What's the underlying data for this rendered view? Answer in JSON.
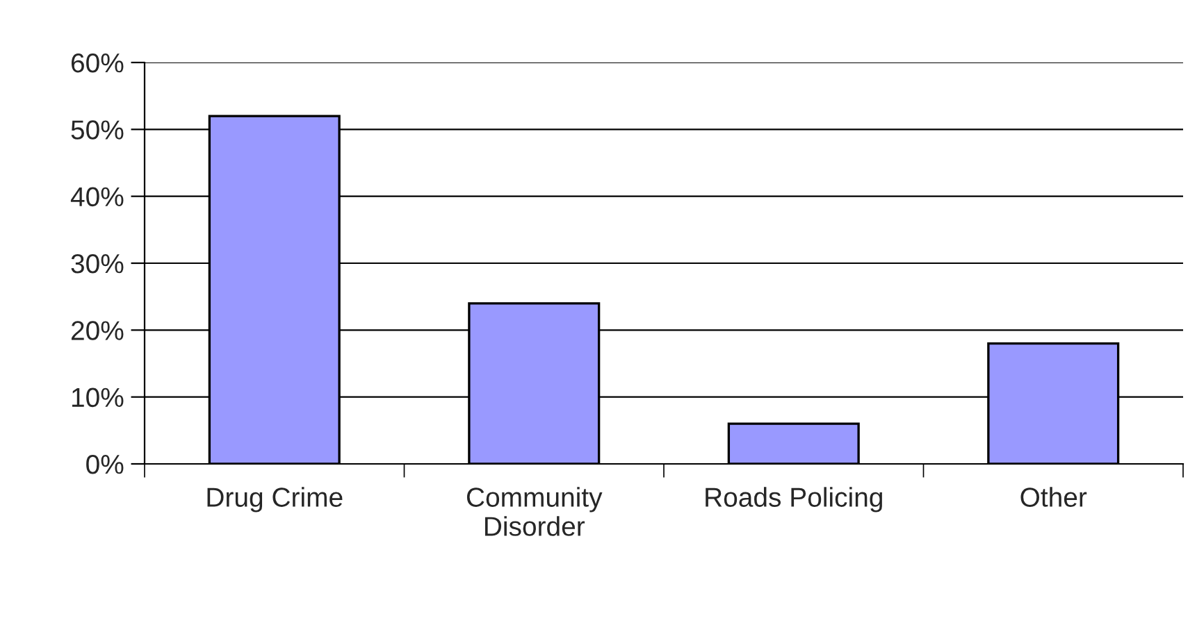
{
  "chart_data": {
    "type": "bar",
    "categories": [
      "Drug Crime",
      "Community\nDisorder",
      "Roads Policing",
      "Other"
    ],
    "values": [
      52,
      24,
      6,
      18
    ],
    "color": "#9999ff",
    "ylim": [
      0,
      60
    ],
    "yticks": [
      {
        "value": 0,
        "label": "0%"
      },
      {
        "value": 10,
        "label": "10%"
      },
      {
        "value": 20,
        "label": "20%"
      },
      {
        "value": 30,
        "label": "30%"
      },
      {
        "value": 40,
        "label": "40%"
      },
      {
        "value": 50,
        "label": "50%"
      },
      {
        "value": 60,
        "label": "60%"
      }
    ],
    "grid": "y",
    "legend": false
  }
}
